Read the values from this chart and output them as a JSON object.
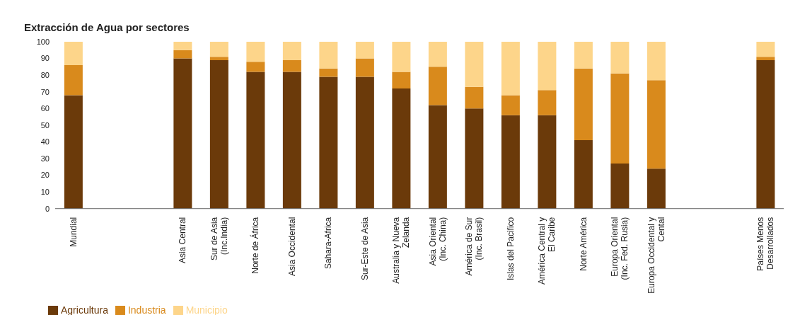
{
  "chart_data": {
    "type": "bar",
    "title": "Extracción de Agua por sectores",
    "stacked": true,
    "categories": [
      "Mundial",
      null,
      null,
      "Asia Central",
      "Sur de Asia\n(Inc.India)",
      "Norte de África",
      "Asia Occidental",
      "Sahara-Africa",
      "Sur-Este de Asia",
      "Australia y Nueva\nZelanda",
      "Asia Oriental\n(Inc. China)",
      "América de Sur\n(Inc. Brasil)",
      "Islas del Pacifico",
      "América Central y\nEl Caribe",
      "Norte América",
      "Europa Oriental\n(Inc. Fed. Rusia)",
      "Europa Occidental y\nCental",
      null,
      null,
      "Países Menos\nDesarrollados"
    ],
    "series": [
      {
        "name": "Agricultura",
        "color": "#6b3a0a",
        "values": [
          68,
          null,
          null,
          90,
          89,
          82,
          82,
          79,
          79,
          72,
          62,
          60,
          56,
          56,
          41,
          27,
          24,
          null,
          null,
          89
        ]
      },
      {
        "name": "Industria",
        "color": "#d98a1c",
        "values": [
          18,
          null,
          null,
          5,
          2,
          6,
          7,
          5,
          11,
          10,
          23,
          13,
          12,
          15,
          43,
          54,
          53,
          null,
          null,
          2
        ]
      },
      {
        "name": "Municipio",
        "color": "#fdd58a",
        "values": [
          14,
          null,
          null,
          5,
          9,
          12,
          11,
          16,
          10,
          18,
          15,
          27,
          32,
          29,
          16,
          19,
          23,
          null,
          null,
          9
        ]
      }
    ],
    "ylim": [
      0,
      100
    ],
    "yticks": [
      0,
      10,
      20,
      30,
      40,
      50,
      60,
      70,
      80,
      90,
      100
    ],
    "grid": false,
    "legend": "bottom left"
  }
}
